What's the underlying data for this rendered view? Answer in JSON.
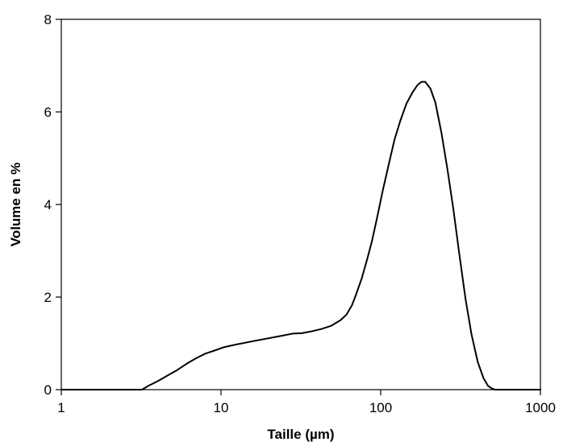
{
  "chart_data": {
    "type": "line",
    "title": "",
    "xlabel": "Taille (µm)",
    "ylabel": "Volume en %",
    "xscale": "log",
    "xlim": [
      1,
      1000
    ],
    "ylim": [
      0,
      8
    ],
    "xticks": [
      1,
      10,
      100,
      1000
    ],
    "xtick_labels": [
      "1",
      "10",
      "100",
      "1000"
    ],
    "yticks": [
      0,
      2,
      4,
      6,
      8
    ],
    "ytick_labels": [
      "0",
      "2",
      "4",
      "6",
      "8"
    ],
    "grid": false,
    "legend": "none",
    "line_color": "#000000",
    "series": [
      {
        "x": [
          1,
          2,
          3.2,
          3.5,
          4.0,
          4.6,
          5.3,
          6.1,
          7.0,
          8.0,
          9.2,
          10.5,
          12.2,
          14.0,
          16.0,
          18.5,
          21.3,
          24.5,
          28.0,
          32.0,
          37.0,
          42.5,
          49.0,
          56.0,
          61.0,
          66.0,
          70.0,
          76.0,
          82.0,
          88.0,
          95.0,
          103.0,
          112.0,
          122.0,
          133.0,
          145.0,
          158.0,
          170.0,
          180.0,
          190.0,
          205.0,
          220.0,
          240.0,
          262.0,
          285.0,
          310.0,
          340.0,
          370.0,
          405.0,
          440.0,
          470.0,
          500.0,
          520.0,
          550.0,
          600.0,
          700.0,
          1000.0
        ],
        "y": [
          0,
          0,
          0,
          0.08,
          0.18,
          0.3,
          0.42,
          0.56,
          0.68,
          0.78,
          0.85,
          0.92,
          0.97,
          1.01,
          1.05,
          1.09,
          1.13,
          1.17,
          1.21,
          1.22,
          1.26,
          1.31,
          1.38,
          1.5,
          1.62,
          1.82,
          2.05,
          2.4,
          2.8,
          3.2,
          3.72,
          4.3,
          4.85,
          5.4,
          5.82,
          6.18,
          6.42,
          6.58,
          6.65,
          6.65,
          6.5,
          6.2,
          5.55,
          4.75,
          3.9,
          2.95,
          1.95,
          1.2,
          0.6,
          0.25,
          0.08,
          0.02,
          0.0,
          0.0,
          0.0,
          0.0,
          0.0
        ]
      }
    ]
  }
}
